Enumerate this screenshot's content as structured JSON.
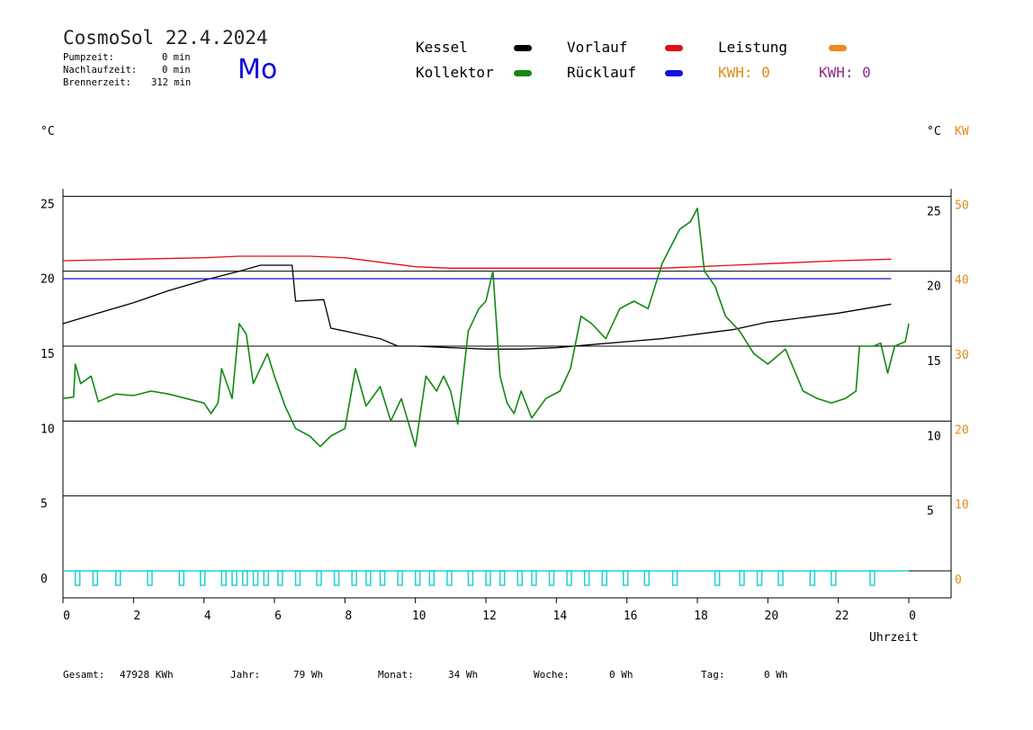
{
  "header": {
    "title": "CosmoSol 22.4.2024",
    "weekday": "Mo",
    "stats": [
      {
        "label": "Pumpzeit:",
        "value": "0 min"
      },
      {
        "label": "Nachlaufzeit:",
        "value": "0 min"
      },
      {
        "label": "Brennerzeit:",
        "value": "312 min"
      }
    ]
  },
  "legend": [
    {
      "label": "Kessel",
      "color": "#000000"
    },
    {
      "label": "Vorlauf",
      "color": "#e01010"
    },
    {
      "label": "Leistung",
      "color": "#f08a1a"
    },
    {
      "label": "Kollektor",
      "color": "#118811"
    },
    {
      "label": "Rücklauf",
      "color": "#1010e0"
    }
  ],
  "kwh": [
    {
      "label": "KWH: 0",
      "color": "#e08a1a"
    },
    {
      "label": "KWH: 0",
      "color": "#8a2a8a"
    }
  ],
  "units": {
    "left": "°C",
    "right": "°C",
    "right_kw": "KW"
  },
  "footer": {
    "gesamt_label": "Gesamt:",
    "gesamt_value": "47928 KWh",
    "jahr_label": "Jahr:",
    "jahr_value": "79 Wh",
    "monat_label": "Monat:",
    "monat_value": "34 Wh",
    "woche_label": "Woche:",
    "woche_value": "0 Wh",
    "tag_label": "Tag:",
    "tag_value": "0 Wh"
  },
  "chart_data": {
    "type": "line",
    "xlabel": "Uhrzeit",
    "x_ticks": [
      "0",
      "2",
      "4",
      "6",
      "8",
      "10",
      "12",
      "14",
      "16",
      "18",
      "20",
      "22",
      "0"
    ],
    "xlim": [
      0,
      24
    ],
    "ylim": [
      -1.8,
      25.5
    ],
    "left_ticks": [
      "25",
      "20",
      "15",
      "10",
      "5",
      "0"
    ],
    "right_ticks_c": [
      "25",
      "20",
      "15",
      "10",
      "5"
    ],
    "right_ticks_kw": [
      "50",
      "40",
      "30",
      "20",
      "10",
      "0"
    ],
    "grid_y": [
      25,
      20,
      15,
      10,
      5,
      0
    ],
    "series": [
      {
        "name": "Kessel",
        "color": "#000000",
        "points": [
          [
            0,
            16.5
          ],
          [
            1,
            17.2
          ],
          [
            2,
            17.9
          ],
          [
            3,
            18.7
          ],
          [
            4,
            19.4
          ],
          [
            5,
            20.0
          ],
          [
            5.6,
            20.4
          ],
          [
            6.5,
            20.4
          ],
          [
            6.6,
            18.0
          ],
          [
            7.4,
            18.1
          ],
          [
            7.6,
            16.2
          ],
          [
            8.0,
            16.0
          ],
          [
            9.0,
            15.5
          ],
          [
            9.5,
            15.0
          ],
          [
            10,
            15.0
          ],
          [
            11,
            14.9
          ],
          [
            12,
            14.8
          ],
          [
            13,
            14.8
          ],
          [
            14,
            14.9
          ],
          [
            15,
            15.1
          ],
          [
            16,
            15.3
          ],
          [
            17,
            15.5
          ],
          [
            18,
            15.8
          ],
          [
            19,
            16.1
          ],
          [
            20,
            16.6
          ],
          [
            21,
            16.9
          ],
          [
            22,
            17.2
          ],
          [
            23,
            17.6
          ],
          [
            23.5,
            17.8
          ]
        ]
      },
      {
        "name": "Vorlauf",
        "color": "#e01010",
        "points": [
          [
            0,
            20.7
          ],
          [
            2,
            20.8
          ],
          [
            4,
            20.9
          ],
          [
            5,
            21.0
          ],
          [
            7,
            21.0
          ],
          [
            8,
            20.9
          ],
          [
            9,
            20.6
          ],
          [
            10,
            20.3
          ],
          [
            11,
            20.2
          ],
          [
            13,
            20.2
          ],
          [
            15,
            20.2
          ],
          [
            17,
            20.2
          ],
          [
            18,
            20.3
          ],
          [
            19,
            20.4
          ],
          [
            20,
            20.5
          ],
          [
            21,
            20.6
          ],
          [
            22,
            20.7
          ],
          [
            23.5,
            20.8
          ]
        ]
      },
      {
        "name": "Rücklauf",
        "color": "#1010e0",
        "points": [
          [
            0,
            19.5
          ],
          [
            23.5,
            19.5
          ]
        ]
      },
      {
        "name": "Kollektor",
        "color": "#118811",
        "points": [
          [
            0,
            11.5
          ],
          [
            0.3,
            11.6
          ],
          [
            0.35,
            13.8
          ],
          [
            0.5,
            12.5
          ],
          [
            0.8,
            13.0
          ],
          [
            1.0,
            11.3
          ],
          [
            1.5,
            11.8
          ],
          [
            2,
            11.7
          ],
          [
            2.5,
            12.0
          ],
          [
            3,
            11.8
          ],
          [
            3.5,
            11.5
          ],
          [
            4,
            11.2
          ],
          [
            4.2,
            10.5
          ],
          [
            4.4,
            11.2
          ],
          [
            4.5,
            13.5
          ],
          [
            4.8,
            11.5
          ],
          [
            5.0,
            16.5
          ],
          [
            5.2,
            15.8
          ],
          [
            5.4,
            12.5
          ],
          [
            5.8,
            14.5
          ],
          [
            6.0,
            13.0
          ],
          [
            6.3,
            11.0
          ],
          [
            6.6,
            9.5
          ],
          [
            7.0,
            9.0
          ],
          [
            7.3,
            8.3
          ],
          [
            7.6,
            9.0
          ],
          [
            8.0,
            9.5
          ],
          [
            8.3,
            13.5
          ],
          [
            8.6,
            11.0
          ],
          [
            9.0,
            12.3
          ],
          [
            9.3,
            10.0
          ],
          [
            9.6,
            11.5
          ],
          [
            10,
            8.3
          ],
          [
            10.3,
            13.0
          ],
          [
            10.6,
            12.0
          ],
          [
            10.8,
            13.0
          ],
          [
            11.0,
            12.0
          ],
          [
            11.2,
            9.8
          ],
          [
            11.5,
            16.0
          ],
          [
            11.8,
            17.5
          ],
          [
            12,
            18.0
          ],
          [
            12.2,
            20.0
          ],
          [
            12.4,
            13.0
          ],
          [
            12.6,
            11.2
          ],
          [
            12.8,
            10.5
          ],
          [
            13.0,
            12.0
          ],
          [
            13.3,
            10.2
          ],
          [
            13.7,
            11.5
          ],
          [
            14.1,
            12.0
          ],
          [
            14.4,
            13.5
          ],
          [
            14.7,
            17.0
          ],
          [
            15.0,
            16.5
          ],
          [
            15.4,
            15.5
          ],
          [
            15.8,
            17.5
          ],
          [
            16.2,
            18.0
          ],
          [
            16.6,
            17.5
          ],
          [
            17.0,
            20.5
          ],
          [
            17.5,
            22.8
          ],
          [
            17.8,
            23.3
          ],
          [
            18.0,
            24.2
          ],
          [
            18.2,
            20.0
          ],
          [
            18.5,
            19.0
          ],
          [
            18.8,
            17.0
          ],
          [
            19.2,
            16.0
          ],
          [
            19.6,
            14.5
          ],
          [
            20,
            13.8
          ],
          [
            20.5,
            14.8
          ],
          [
            21,
            12.0
          ],
          [
            21.4,
            11.5
          ],
          [
            21.8,
            11.2
          ],
          [
            22.2,
            11.5
          ],
          [
            22.5,
            12.0
          ],
          [
            22.6,
            15.0
          ],
          [
            23,
            15.0
          ],
          [
            23.2,
            15.2
          ],
          [
            23.4,
            13.2
          ],
          [
            23.6,
            15.0
          ],
          [
            23.9,
            15.3
          ],
          [
            24,
            16.5
          ]
        ]
      }
    ]
  }
}
